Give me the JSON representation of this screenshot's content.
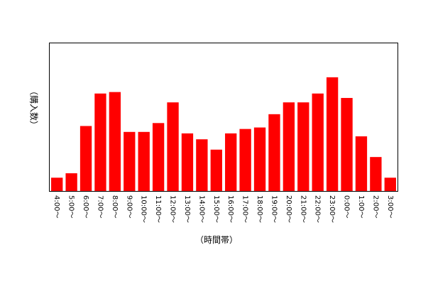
{
  "chart_data": {
    "type": "bar",
    "title": "",
    "xlabel": "（時間帯）",
    "ylabel": "（購入数）",
    "categories": [
      "4:00～",
      "5:00～",
      "6:00～",
      "7:00～",
      "8:00～",
      "9:00～",
      "10:00～",
      "11:00～",
      "12:00～",
      "13:00～",
      "14:00～",
      "15:00～",
      "16:00～",
      "17:00～",
      "18:00～",
      "19:00～",
      "20:00～",
      "21:00～",
      "22:00～",
      "23:00～",
      "0:00～",
      "1:00～",
      "2:00～",
      "3:00～"
    ],
    "values": [
      9,
      12,
      44,
      66,
      67,
      40,
      40,
      46,
      60,
      39,
      35,
      28,
      39,
      42,
      43,
      52,
      60,
      60,
      66,
      77,
      63,
      37,
      23,
      9
    ],
    "ylim": [
      0,
      100
    ],
    "y_tick_labels_shown": false,
    "grid": false,
    "bar_color": "#ff0000"
  }
}
